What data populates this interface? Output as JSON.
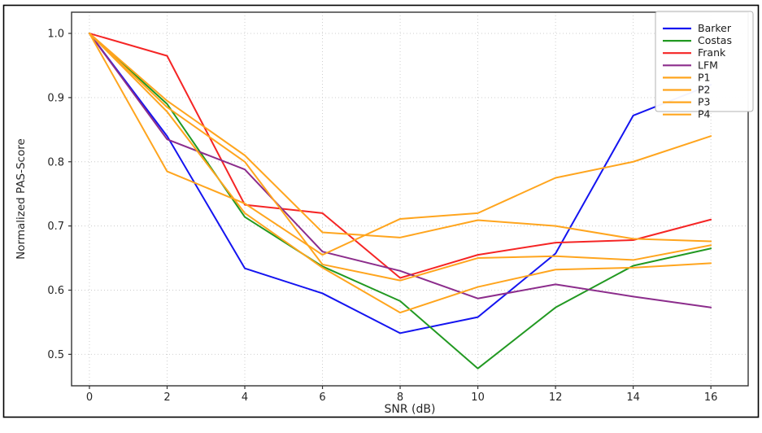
{
  "figure": {
    "background": "#ffffff",
    "outer_border_color": "#000000"
  },
  "style": {
    "grid_color": "#c9c9c9",
    "spine_color": "#333333",
    "tick_color": "#333333",
    "tick_label_color": "#262626",
    "legend_border_color": "#b3b3b3",
    "legend_background": "#ffffff",
    "line_width": 2
  },
  "chart_data": {
    "type": "line",
    "title": "",
    "xlabel": "SNR (dB)",
    "ylabel": "Normalized PAS-Score",
    "x": [
      0,
      2,
      4,
      6,
      8,
      10,
      12,
      14,
      16
    ],
    "xticks": [
      0,
      2,
      4,
      6,
      8,
      10,
      12,
      14,
      16
    ],
    "yticks": [
      0.5,
      0.6,
      0.7,
      0.8,
      0.9,
      1.0
    ],
    "xlim": [
      -0.46,
      16.96
    ],
    "ylim": [
      0.451,
      1.033
    ],
    "grid": true,
    "grid_style": "dotted",
    "legend_position": "upper right",
    "series": [
      {
        "name": "Barker",
        "color": "#1414f0",
        "values": [
          1.0,
          0.84,
          0.634,
          0.595,
          0.533,
          0.558,
          0.657,
          0.872,
          0.92
        ]
      },
      {
        "name": "Costas",
        "color": "#229922",
        "values": [
          1.0,
          0.89,
          0.714,
          0.637,
          0.583,
          0.478,
          0.573,
          0.638,
          0.665
        ]
      },
      {
        "name": "Frank",
        "color": "#f52525",
        "values": [
          1.0,
          0.965,
          0.733,
          0.72,
          0.619,
          0.655,
          0.674,
          0.678,
          0.71
        ]
      },
      {
        "name": "LFM",
        "color": "#8c2d8c",
        "values": [
          1.0,
          0.835,
          0.788,
          0.66,
          0.63,
          0.587,
          0.609,
          0.59,
          0.573
        ]
      },
      {
        "name": "P1",
        "color": "#ffa51e",
        "values": [
          1.0,
          0.895,
          0.81,
          0.69,
          0.682,
          0.709,
          0.7,
          0.68,
          0.676
        ]
      },
      {
        "name": "P2",
        "color": "#ffa51e",
        "values": [
          1.0,
          0.785,
          0.735,
          0.655,
          0.711,
          0.72,
          0.775,
          0.8,
          0.84
        ]
      },
      {
        "name": "P3",
        "color": "#ffa51e",
        "values": [
          1.0,
          0.885,
          0.8,
          0.64,
          0.615,
          0.65,
          0.653,
          0.647,
          0.67
        ]
      },
      {
        "name": "P4",
        "color": "#ffa51e",
        "values": [
          1.0,
          0.878,
          0.72,
          0.635,
          0.565,
          0.605,
          0.632,
          0.635,
          0.642
        ]
      }
    ]
  }
}
